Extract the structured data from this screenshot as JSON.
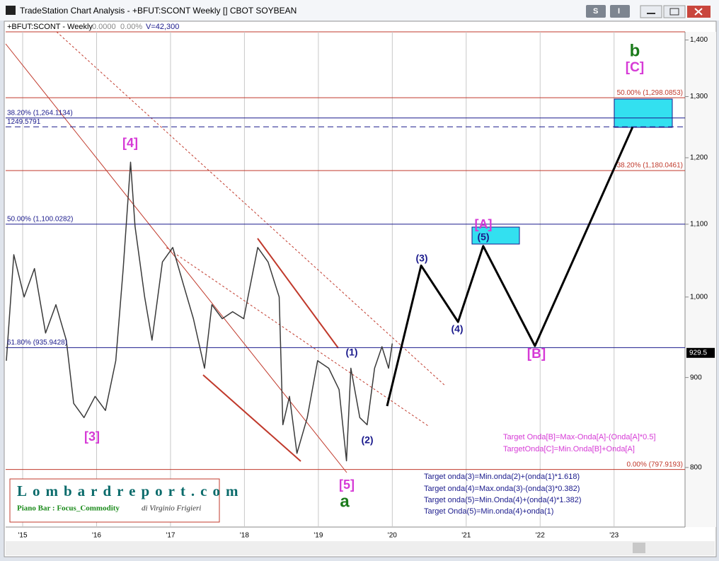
{
  "window": {
    "title": "TradeStation Chart Analysis - +BFUT:SCONT Weekly [] CBOT SOYBEAN",
    "buttons": [
      "S",
      "I"
    ]
  },
  "chart_data": {
    "type": "line",
    "title": "+BFUT:SCONT - Weekly",
    "header_values": [
      "0.0000",
      "0.00%",
      "V=42,300"
    ],
    "xlim": [
      2014.77,
      2023.96
    ],
    "xticks": [
      {
        "value": 2015,
        "label": "'15"
      },
      {
        "value": 2016,
        "label": "'16"
      },
      {
        "value": 2017,
        "label": "'17"
      },
      {
        "value": 2018,
        "label": "'18"
      },
      {
        "value": 2019,
        "label": "'19"
      },
      {
        "value": 2020,
        "label": "'20"
      },
      {
        "value": 2021,
        "label": "'21"
      },
      {
        "value": 2022,
        "label": "'22"
      },
      {
        "value": 2023,
        "label": "'23"
      }
    ],
    "ylim": [
      740,
      1415
    ],
    "log_scale": true,
    "yticks": [
      800,
      900,
      {
        "value": 1000,
        "label": "1,000"
      },
      {
        "value": 1100,
        "label": "1,100"
      },
      {
        "value": 1200,
        "label": "1,200"
      },
      {
        "value": 1300,
        "label": "1,300"
      },
      {
        "value": 1400,
        "label": "1,400"
      }
    ],
    "series": [
      {
        "color": "#3a3a3a",
        "x": [
          2014.78,
          2014.88,
          2015.02,
          2015.16,
          2015.31,
          2015.45,
          2015.59,
          2015.69,
          2015.83,
          2015.98,
          2016.12,
          2016.26,
          2016.36,
          2016.46,
          2016.52,
          2016.65,
          2016.75,
          2016.89,
          2017.03,
          2017.17,
          2017.31,
          2017.46,
          2017.56,
          2017.7,
          2017.84,
          2017.99,
          2018.18,
          2018.32,
          2018.47,
          2018.52,
          2018.61,
          2018.71,
          2018.85,
          2018.99,
          2019.14,
          2019.28,
          2019.38,
          2019.44,
          2019.56,
          2019.66,
          2019.76,
          2019.86,
          2019.95,
          2020.0
        ],
        "values": [
          920,
          1057,
          1000,
          1038,
          954,
          990,
          945,
          870,
          854,
          878,
          862,
          920,
          1038,
          1193,
          1097,
          1000,
          945,
          1047,
          1067,
          1018,
          972,
          911,
          990,
          972,
          981,
          972,
          1067,
          1047,
          1000,
          846,
          878,
          815,
          854,
          920,
          911,
          886,
          807,
          911,
          854,
          846,
          911,
          937,
          911,
          941
        ]
      },
      {
        "color": "#000000",
        "x": [
          2019.93,
          2020.39,
          2020.89,
          2021.23,
          2021.93,
          2023.25
        ],
        "values": [
          867,
          1042,
          968,
          1069,
          938,
          1249
        ]
      }
    ],
    "last_price": 929.5,
    "levels": [
      {
        "value": 1298.0853,
        "label": "50.00% (1,298.0853)",
        "color": "#c0392b",
        "style": "solid"
      },
      {
        "value": 1264.1134,
        "label": "38.20% (1,264.1134)",
        "color": "#1a1a8c",
        "style": "solid"
      },
      {
        "value": 1249.5791,
        "label": "1249.5791",
        "color": "#1a1a8c",
        "style": "dashed"
      },
      {
        "value": 1180.0461,
        "label": "38.20% (1,180.0461)",
        "color": "#c0392b",
        "style": "solid"
      },
      {
        "value": 1100.0282,
        "label": "50.00% (1,100.0282)",
        "color": "#1a1a8c",
        "style": "solid"
      },
      {
        "value": 935.9428,
        "label": "61.80% (935.9428)",
        "color": "#1a1a8c",
        "style": "solid"
      },
      {
        "value": 797.9193,
        "label": "0.00% (797.9193)",
        "color": "#c0392b",
        "style": "solid"
      }
    ],
    "wave_labels": [
      {
        "text": "b",
        "color": "#1a7a1a"
      },
      {
        "text": "[C]",
        "color": "#d63ad6"
      },
      {
        "text": "[4]",
        "color": "#d63ad6"
      },
      {
        "text": "[3]",
        "color": "#d63ad6"
      },
      {
        "text": "[5]",
        "color": "#d63ad6"
      },
      {
        "text": "a",
        "color": "#1a7a1a"
      },
      {
        "text": "(1)",
        "color": "#1a1a8c"
      },
      {
        "text": "(2)",
        "color": "#1a1a8c"
      },
      {
        "text": "(3)",
        "color": "#1a1a8c"
      },
      {
        "text": "(4)",
        "color": "#1a1a8c"
      },
      {
        "text": "(5)",
        "color": "#1a1a8c"
      },
      {
        "text": "[A]",
        "color": "#d63ad6"
      },
      {
        "text": "[B]",
        "color": "#d63ad6"
      }
    ],
    "annotations": [
      {
        "text": "Target Onda[B]=Max-Onda[A]-(Onda[A]*0.5]",
        "color": "#d63ad6"
      },
      {
        "text": "TargetOnda[C]=Min.Onda[B]+Onda[A]",
        "color": "#d63ad6"
      },
      {
        "text": "Target onda(3)=Min.onda(2)+(onda(1)*1.618)",
        "color": "#1a1a8c"
      },
      {
        "text": "Target onda(4)=Max.onda(3)-(onda(3)*0.382)",
        "color": "#1a1a8c"
      },
      {
        "text": "Target onda(5)=Min.Onda(4)+(onda(4)*1.382)",
        "color": "#1a1a8c"
      },
      {
        "text": "Target Onda(5)=Min.onda(4)+onda(1)",
        "color": "#1a1a8c"
      }
    ]
  },
  "logo": {
    "title": "Lombardreport.com",
    "subtitle": "Piano Bar : Focus_Commodity",
    "author": "di Virginio Frigieri"
  }
}
